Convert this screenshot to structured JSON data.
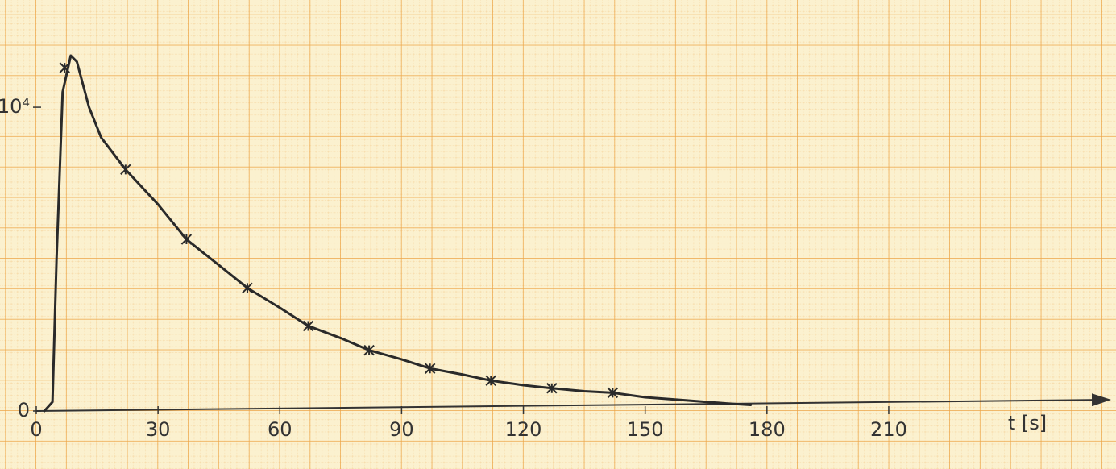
{
  "chart_data": {
    "type": "line",
    "x_label": "t [s]",
    "xlim": [
      0,
      264
    ],
    "ylim": [
      0,
      13000
    ],
    "xticks": [
      0,
      30,
      60,
      90,
      120,
      150,
      180,
      210
    ],
    "yticks": [
      0,
      {
        "value": 10000,
        "label": "10⁴"
      }
    ],
    "grid": true,
    "series": [
      {
        "color": "#2a2a2a",
        "marker": "none",
        "x": [
          2,
          4,
          5,
          6.5,
          8.5,
          10,
          13,
          16,
          22,
          30,
          37,
          45,
          52,
          60,
          67,
          75,
          82,
          90,
          97,
          105,
          112,
          120,
          127,
          135,
          142,
          150,
          160,
          170,
          176
        ],
        "values": [
          0,
          300,
          5000,
          10500,
          11700,
          11500,
          10000,
          9000,
          7950,
          6800,
          5650,
          4800,
          4050,
          3400,
          2800,
          2400,
          2000,
          1700,
          1400,
          1200,
          1000,
          850,
          750,
          650,
          600,
          450,
          350,
          250,
          200
        ]
      },
      {
        "color": "#2a2a2a",
        "marker": "x",
        "x": [
          7,
          22,
          37,
          52,
          67,
          82,
          97,
          112,
          127,
          142
        ],
        "values": [
          11300,
          7950,
          5650,
          4050,
          2800,
          2000,
          1400,
          1000,
          750,
          600
        ]
      }
    ]
  }
}
